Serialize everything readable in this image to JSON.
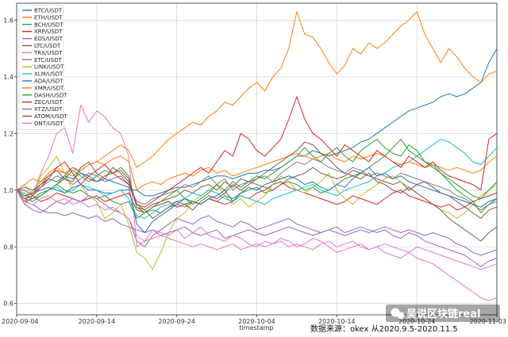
{
  "chart_data": {
    "type": "line",
    "title": "",
    "xlabel": "timestamp",
    "ylabel": "",
    "ylim": [
      0.56,
      1.66
    ],
    "yticks": [
      0.6,
      0.8,
      1.0,
      1.2,
      1.4,
      1.6
    ],
    "ytick_labels": [
      "0.6",
      "0.8",
      "1.0",
      "1.2",
      "1.4",
      "1.6"
    ],
    "xlim": [
      0,
      60
    ],
    "xticks": [
      0,
      10,
      20,
      30,
      40,
      50,
      60
    ],
    "xtick_labels": [
      "2020-09-04",
      "2020-09-14",
      "2020-09-24",
      "2020-10-04",
      "2020-10-14",
      "2020-10-24",
      "2020-11-03"
    ],
    "grid": true,
    "legend_position": "top-left",
    "annotation": "数据来源：okex 从2020.9.5-2020.11.5",
    "series": [
      {
        "name": "BTC/USDT",
        "color": "#1f77b4",
        "values": [
          1.0,
          0.98,
          0.99,
          1.0,
          1.01,
          1.0,
          0.99,
          1.01,
          1.02,
          1.0,
          1.0,
          0.99,
          0.99,
          1.0,
          1.0,
          1.0,
          0.98,
          0.98,
          0.99,
          1.0,
          1.01,
          1.01,
          1.02,
          1.03,
          1.04,
          1.05,
          1.05,
          1.04,
          1.05,
          1.06,
          1.06,
          1.07,
          1.07,
          1.08,
          1.1,
          1.12,
          1.12,
          1.14,
          1.13,
          1.12,
          1.13,
          1.14,
          1.15,
          1.17,
          1.18,
          1.2,
          1.22,
          1.24,
          1.26,
          1.28,
          1.29,
          1.3,
          1.31,
          1.33,
          1.34,
          1.33,
          1.34,
          1.36,
          1.38,
          1.45,
          1.5
        ]
      },
      {
        "name": "ETH/USDT",
        "color": "#ff7f0e",
        "values": [
          1.0,
          0.96,
          1.0,
          1.03,
          1.06,
          1.08,
          1.06,
          1.05,
          1.07,
          1.09,
          1.1,
          1.12,
          1.14,
          1.16,
          1.14,
          1.08,
          1.1,
          1.12,
          1.15,
          1.18,
          1.2,
          1.22,
          1.24,
          1.23,
          1.26,
          1.28,
          1.31,
          1.3,
          1.33,
          1.36,
          1.38,
          1.35,
          1.4,
          1.43,
          1.5,
          1.63,
          1.55,
          1.54,
          1.5,
          1.45,
          1.41,
          1.44,
          1.5,
          1.48,
          1.52,
          1.5,
          1.52,
          1.55,
          1.58,
          1.6,
          1.63,
          1.55,
          1.5,
          1.45,
          1.5,
          1.47,
          1.43,
          1.4,
          1.38,
          1.41,
          1.42
        ]
      },
      {
        "name": "BCH/USDT",
        "color": "#2ca02c",
        "values": [
          1.0,
          0.98,
          0.97,
          0.99,
          1.0,
          1.02,
          1.0,
          0.99,
          1.0,
          0.98,
          0.97,
          0.98,
          0.96,
          0.95,
          0.96,
          0.9,
          0.92,
          0.93,
          0.92,
          0.94,
          0.95,
          0.94,
          0.96,
          0.95,
          0.97,
          0.96,
          0.98,
          0.97,
          0.99,
          1.0,
          1.01,
          0.99,
          1.0,
          1.02,
          1.03,
          1.02,
          1.0,
          1.01,
          0.99,
          1.0,
          1.02,
          1.04,
          1.05,
          1.06,
          1.08,
          1.1,
          1.12,
          1.15,
          1.18,
          1.14,
          1.12,
          1.1,
          1.09,
          1.06,
          1.03,
          1.0,
          0.98,
          0.96,
          0.92,
          0.95,
          0.97
        ]
      },
      {
        "name": "XRP/USDT",
        "color": "#d62728",
        "values": [
          1.0,
          0.97,
          0.98,
          0.96,
          0.97,
          0.99,
          0.98,
          0.97,
          0.96,
          0.97,
          0.98,
          0.96,
          0.97,
          0.98,
          0.99,
          0.93,
          0.92,
          0.94,
          0.95,
          0.96,
          0.94,
          0.95,
          0.96,
          0.95,
          0.97,
          0.96,
          0.95,
          0.96,
          0.98,
          0.97,
          0.99,
          1.0,
          1.02,
          1.03,
          1.01,
          1.0,
          0.99,
          0.98,
          0.97,
          0.96,
          0.95,
          0.96,
          0.98,
          0.97,
          0.96,
          0.95,
          0.97,
          0.99,
          1.0,
          0.98,
          0.97,
          0.96,
          0.95,
          0.94,
          0.95,
          0.93,
          0.94,
          0.96,
          0.97,
          0.98,
          0.99
        ]
      },
      {
        "name": "EOS/USDT",
        "color": "#9467bd",
        "values": [
          1.0,
          0.96,
          0.95,
          0.93,
          0.92,
          0.92,
          0.91,
          0.92,
          0.91,
          0.9,
          0.91,
          0.89,
          0.9,
          0.88,
          0.87,
          0.86,
          0.85,
          0.86,
          0.84,
          0.85,
          0.86,
          0.87,
          0.85,
          0.84,
          0.85,
          0.86,
          0.83,
          0.84,
          0.85,
          0.86,
          0.85,
          0.84,
          0.85,
          0.86,
          0.87,
          0.86,
          0.85,
          0.84,
          0.85,
          0.86,
          0.85,
          0.84,
          0.85,
          0.86,
          0.85,
          0.86,
          0.87,
          0.86,
          0.85,
          0.86,
          0.85,
          0.84,
          0.85,
          0.84,
          0.83,
          0.81,
          0.8,
          0.78,
          0.77,
          0.78,
          0.79
        ]
      },
      {
        "name": "LTC/USDT",
        "color": "#8c564b",
        "values": [
          1.0,
          0.96,
          0.97,
          0.98,
          1.0,
          1.02,
          1.05,
          1.08,
          1.06,
          1.04,
          1.03,
          1.05,
          1.06,
          1.07,
          1.04,
          0.94,
          0.93,
          0.95,
          0.96,
          0.97,
          0.98,
          1.0,
          0.99,
          1.01,
          1.02,
          1.0,
          1.03,
          1.01,
          1.04,
          1.03,
          1.02,
          1.01,
          1.0,
          1.02,
          1.04,
          1.05,
          1.06,
          1.08,
          1.06,
          1.05,
          1.04,
          1.05,
          1.07,
          1.06,
          1.05,
          1.04,
          1.03,
          1.02,
          1.03,
          1.0,
          1.02,
          1.03,
          1.01,
          0.99,
          0.98,
          0.96,
          0.94,
          0.92,
          0.9,
          0.93,
          0.94
        ]
      },
      {
        "name": "TRX/USDT",
        "color": "#e377c2",
        "values": [
          1.0,
          0.95,
          0.98,
          1.06,
          1.12,
          1.2,
          1.22,
          1.13,
          1.3,
          1.24,
          1.28,
          1.26,
          1.22,
          1.2,
          1.12,
          0.8,
          0.82,
          0.86,
          0.85,
          0.84,
          0.86,
          0.83,
          0.85,
          0.87,
          0.84,
          0.83,
          0.82,
          0.84,
          0.83,
          0.81,
          0.8,
          0.82,
          0.81,
          0.83,
          0.82,
          0.8,
          0.81,
          0.83,
          0.82,
          0.8,
          0.78,
          0.79,
          0.8,
          0.81,
          0.79,
          0.8,
          0.78,
          0.77,
          0.76,
          0.78,
          0.76,
          0.75,
          0.74,
          0.72,
          0.7,
          0.68,
          0.66,
          0.64,
          0.62,
          0.61,
          0.62
        ]
      },
      {
        "name": "ETC/USDT",
        "color": "#7f7f7f",
        "values": [
          1.0,
          0.98,
          0.99,
          1.01,
          1.03,
          1.05,
          1.04,
          1.02,
          1.04,
          1.06,
          1.05,
          1.03,
          1.04,
          1.05,
          1.02,
          0.96,
          0.95,
          0.97,
          0.98,
          0.99,
          1.0,
          1.02,
          1.01,
          1.03,
          1.05,
          1.02,
          1.04,
          1.0,
          1.02,
          1.03,
          1.04,
          1.05,
          1.03,
          1.06,
          1.08,
          1.1,
          1.09,
          1.11,
          1.1,
          1.08,
          1.07,
          1.06,
          1.08,
          1.07,
          1.05,
          1.06,
          1.05,
          1.04,
          1.06,
          1.05,
          1.04,
          1.03,
          1.02,
          1.01,
          1.0,
          0.98,
          0.97,
          0.95,
          0.93,
          0.95,
          0.96
        ]
      },
      {
        "name": "LINK/USDT",
        "color": "#bcbd22",
        "values": [
          1.0,
          1.02,
          0.98,
          1.05,
          1.08,
          1.12,
          1.06,
          1.0,
          1.02,
          0.98,
          0.96,
          0.9,
          0.92,
          0.95,
          0.88,
          0.78,
          0.76,
          0.72,
          0.78,
          0.85,
          0.9,
          0.92,
          0.96,
          0.98,
          1.0,
          1.02,
          0.98,
          0.95,
          0.97,
          0.94,
          0.96,
          0.98,
          1.02,
          1.05,
          1.03,
          1.0,
          0.99,
          1.01,
          1.03,
          1.06,
          1.0,
          0.97,
          0.95,
          0.98,
          1.0,
          1.02,
          1.04,
          1.05,
          1.03,
          1.01,
          0.99,
          0.97,
          0.95,
          0.93,
          0.92,
          0.9,
          0.92,
          0.95,
          0.98,
          1.0,
          1.02
        ]
      },
      {
        "name": "XLM/USDT",
        "color": "#17becf",
        "values": [
          1.0,
          0.99,
          0.97,
          0.98,
          1.0,
          1.01,
          0.99,
          1.0,
          1.02,
          1.01,
          1.0,
          0.98,
          0.99,
          1.0,
          0.97,
          0.91,
          0.9,
          0.92,
          0.94,
          0.95,
          0.96,
          0.97,
          0.99,
          0.98,
          1.0,
          0.99,
          0.97,
          0.96,
          0.98,
          0.97,
          0.96,
          0.95,
          0.97,
          0.98,
          0.99,
          1.0,
          1.01,
          1.02,
          1.0,
          0.99,
          0.98,
          1.0,
          1.01,
          1.02,
          1.03,
          1.05,
          1.06,
          1.08,
          1.09,
          1.1,
          1.12,
          1.14,
          1.16,
          1.18,
          1.17,
          1.15,
          1.13,
          1.1,
          1.09,
          1.12,
          1.15
        ]
      },
      {
        "name": "ADA/USDT",
        "color": "#1f77b4",
        "values": [
          1.0,
          1.01,
          1.0,
          1.02,
          1.04,
          1.03,
          1.05,
          1.04,
          1.06,
          1.05,
          1.03,
          1.04,
          1.03,
          1.02,
          1.01,
          0.88,
          0.85,
          0.89,
          0.91,
          0.93,
          0.95,
          0.97,
          0.96,
          0.95,
          0.97,
          0.98,
          1.0,
          0.96,
          0.99,
          1.01,
          1.0,
          1.02,
          1.03,
          1.04,
          1.05,
          1.04,
          1.02,
          1.03,
          1.01,
          1.0,
          1.02,
          1.01,
          1.04,
          1.06,
          1.08,
          1.05,
          1.06,
          1.04,
          1.05,
          1.03,
          1.02,
          1.01,
          1.0,
          0.99,
          0.98,
          0.97,
          0.96,
          0.95,
          0.94,
          0.96,
          0.97
        ]
      },
      {
        "name": "XMR/USDT",
        "color": "#ff7f0e",
        "values": [
          1.0,
          1.02,
          1.04,
          1.03,
          1.05,
          1.07,
          1.06,
          1.08,
          1.07,
          1.09,
          1.1,
          1.09,
          1.11,
          1.12,
          1.1,
          1.0,
          1.02,
          1.03,
          1.02,
          1.04,
          1.05,
          1.06,
          1.05,
          1.07,
          1.08,
          1.06,
          1.07,
          1.05,
          1.06,
          1.07,
          1.08,
          1.09,
          1.1,
          1.11,
          1.12,
          1.13,
          1.12,
          1.11,
          1.12,
          1.13,
          1.11,
          1.1,
          1.12,
          1.11,
          1.12,
          1.13,
          1.12,
          1.1,
          1.09,
          1.1,
          1.09,
          1.08,
          1.09,
          1.08,
          1.07,
          1.08,
          1.07,
          1.06,
          1.07,
          1.1,
          1.12
        ]
      },
      {
        "name": "DASH/USDT",
        "color": "#2ca02c",
        "values": [
          1.0,
          0.97,
          0.96,
          0.98,
          1.0,
          1.02,
          1.04,
          1.07,
          1.05,
          1.03,
          1.05,
          1.07,
          1.06,
          1.08,
          1.05,
          0.94,
          0.92,
          0.94,
          0.96,
          0.98,
          1.0,
          0.97,
          0.95,
          0.97,
          0.99,
          1.02,
          1.0,
          1.03,
          1.01,
          1.03,
          1.05,
          1.04,
          1.06,
          1.08,
          1.1,
          1.12,
          1.15,
          1.12,
          1.1,
          1.13,
          1.15,
          1.12,
          1.1,
          1.14,
          1.16,
          1.18,
          1.15,
          1.13,
          1.12,
          1.16,
          1.14,
          1.1,
          1.08,
          1.06,
          1.04,
          1.02,
          1.0,
          0.98,
          0.97,
          1.0,
          1.03
        ]
      },
      {
        "name": "ZEC/USDT",
        "color": "#d62728",
        "values": [
          1.0,
          1.0,
          0.98,
          1.01,
          1.04,
          1.08,
          1.1,
          1.06,
          1.02,
          1.05,
          1.07,
          1.09,
          1.06,
          1.04,
          1.02,
          0.95,
          0.94,
          0.96,
          0.98,
          1.0,
          1.02,
          1.04,
          1.06,
          1.08,
          1.06,
          1.1,
          1.14,
          1.12,
          1.2,
          1.18,
          1.14,
          1.12,
          1.15,
          1.18,
          1.25,
          1.33,
          1.25,
          1.2,
          1.18,
          1.15,
          1.12,
          1.16,
          1.14,
          1.12,
          1.1,
          1.14,
          1.12,
          1.1,
          1.08,
          1.12,
          1.1,
          1.08,
          1.1,
          1.07,
          1.05,
          1.04,
          1.03,
          1.02,
          1.0,
          1.18,
          1.2
        ]
      },
      {
        "name": "XTZ/USDT",
        "color": "#9467bd",
        "values": [
          1.0,
          0.95,
          0.93,
          0.92,
          0.94,
          0.96,
          0.95,
          0.97,
          0.96,
          0.98,
          0.97,
          0.95,
          0.93,
          0.92,
          0.9,
          0.82,
          0.8,
          0.84,
          0.86,
          0.88,
          0.9,
          0.89,
          0.88,
          0.9,
          0.91,
          0.89,
          0.88,
          0.87,
          0.89,
          0.88,
          0.86,
          0.87,
          0.88,
          0.89,
          0.9,
          0.88,
          0.87,
          0.86,
          0.85,
          0.86,
          0.87,
          0.85,
          0.86,
          0.87,
          0.86,
          0.85,
          0.86,
          0.84,
          0.83,
          0.85,
          0.84,
          0.82,
          0.81,
          0.8,
          0.79,
          0.78,
          0.77,
          0.75,
          0.73,
          0.75,
          0.76
        ]
      },
      {
        "name": "ATOM/USDT",
        "color": "#8c564b",
        "values": [
          1.0,
          0.98,
          0.99,
          1.02,
          1.05,
          1.07,
          1.04,
          1.03,
          1.08,
          1.1,
          1.06,
          1.04,
          1.08,
          1.06,
          1.03,
          0.95,
          0.93,
          0.9,
          0.92,
          0.94,
          0.96,
          0.95,
          0.93,
          0.96,
          0.98,
          0.97,
          0.99,
          1.02,
          1.0,
          1.02,
          1.04,
          1.06,
          1.08,
          1.1,
          1.12,
          1.14,
          1.17,
          1.16,
          1.13,
          1.11,
          1.08,
          1.06,
          1.05,
          1.04,
          1.06,
          1.03,
          1.02,
          1.0,
          0.99,
          1.01,
          0.99,
          0.97,
          0.95,
          0.93,
          0.9,
          0.88,
          0.86,
          0.84,
          0.82,
          0.85,
          0.87
        ]
      },
      {
        "name": "ONT/USDT",
        "color": "#e377c2",
        "values": [
          1.0,
          0.96,
          0.95,
          0.97,
          0.98,
          0.96,
          0.97,
          0.95,
          0.96,
          0.94,
          0.95,
          0.93,
          0.94,
          0.92,
          0.9,
          0.84,
          0.82,
          0.83,
          0.84,
          0.83,
          0.82,
          0.81,
          0.8,
          0.81,
          0.8,
          0.79,
          0.8,
          0.81,
          0.79,
          0.8,
          0.81,
          0.8,
          0.81,
          0.82,
          0.8,
          0.81,
          0.8,
          0.79,
          0.81,
          0.82,
          0.8,
          0.81,
          0.82,
          0.8,
          0.79,
          0.8,
          0.81,
          0.8,
          0.79,
          0.78,
          0.8,
          0.79,
          0.78,
          0.77,
          0.76,
          0.75,
          0.74,
          0.73,
          0.72,
          0.73,
          0.74
        ]
      }
    ]
  },
  "watermark": {
    "text": "吴说区块链real",
    "icon": "wechat-icon"
  }
}
